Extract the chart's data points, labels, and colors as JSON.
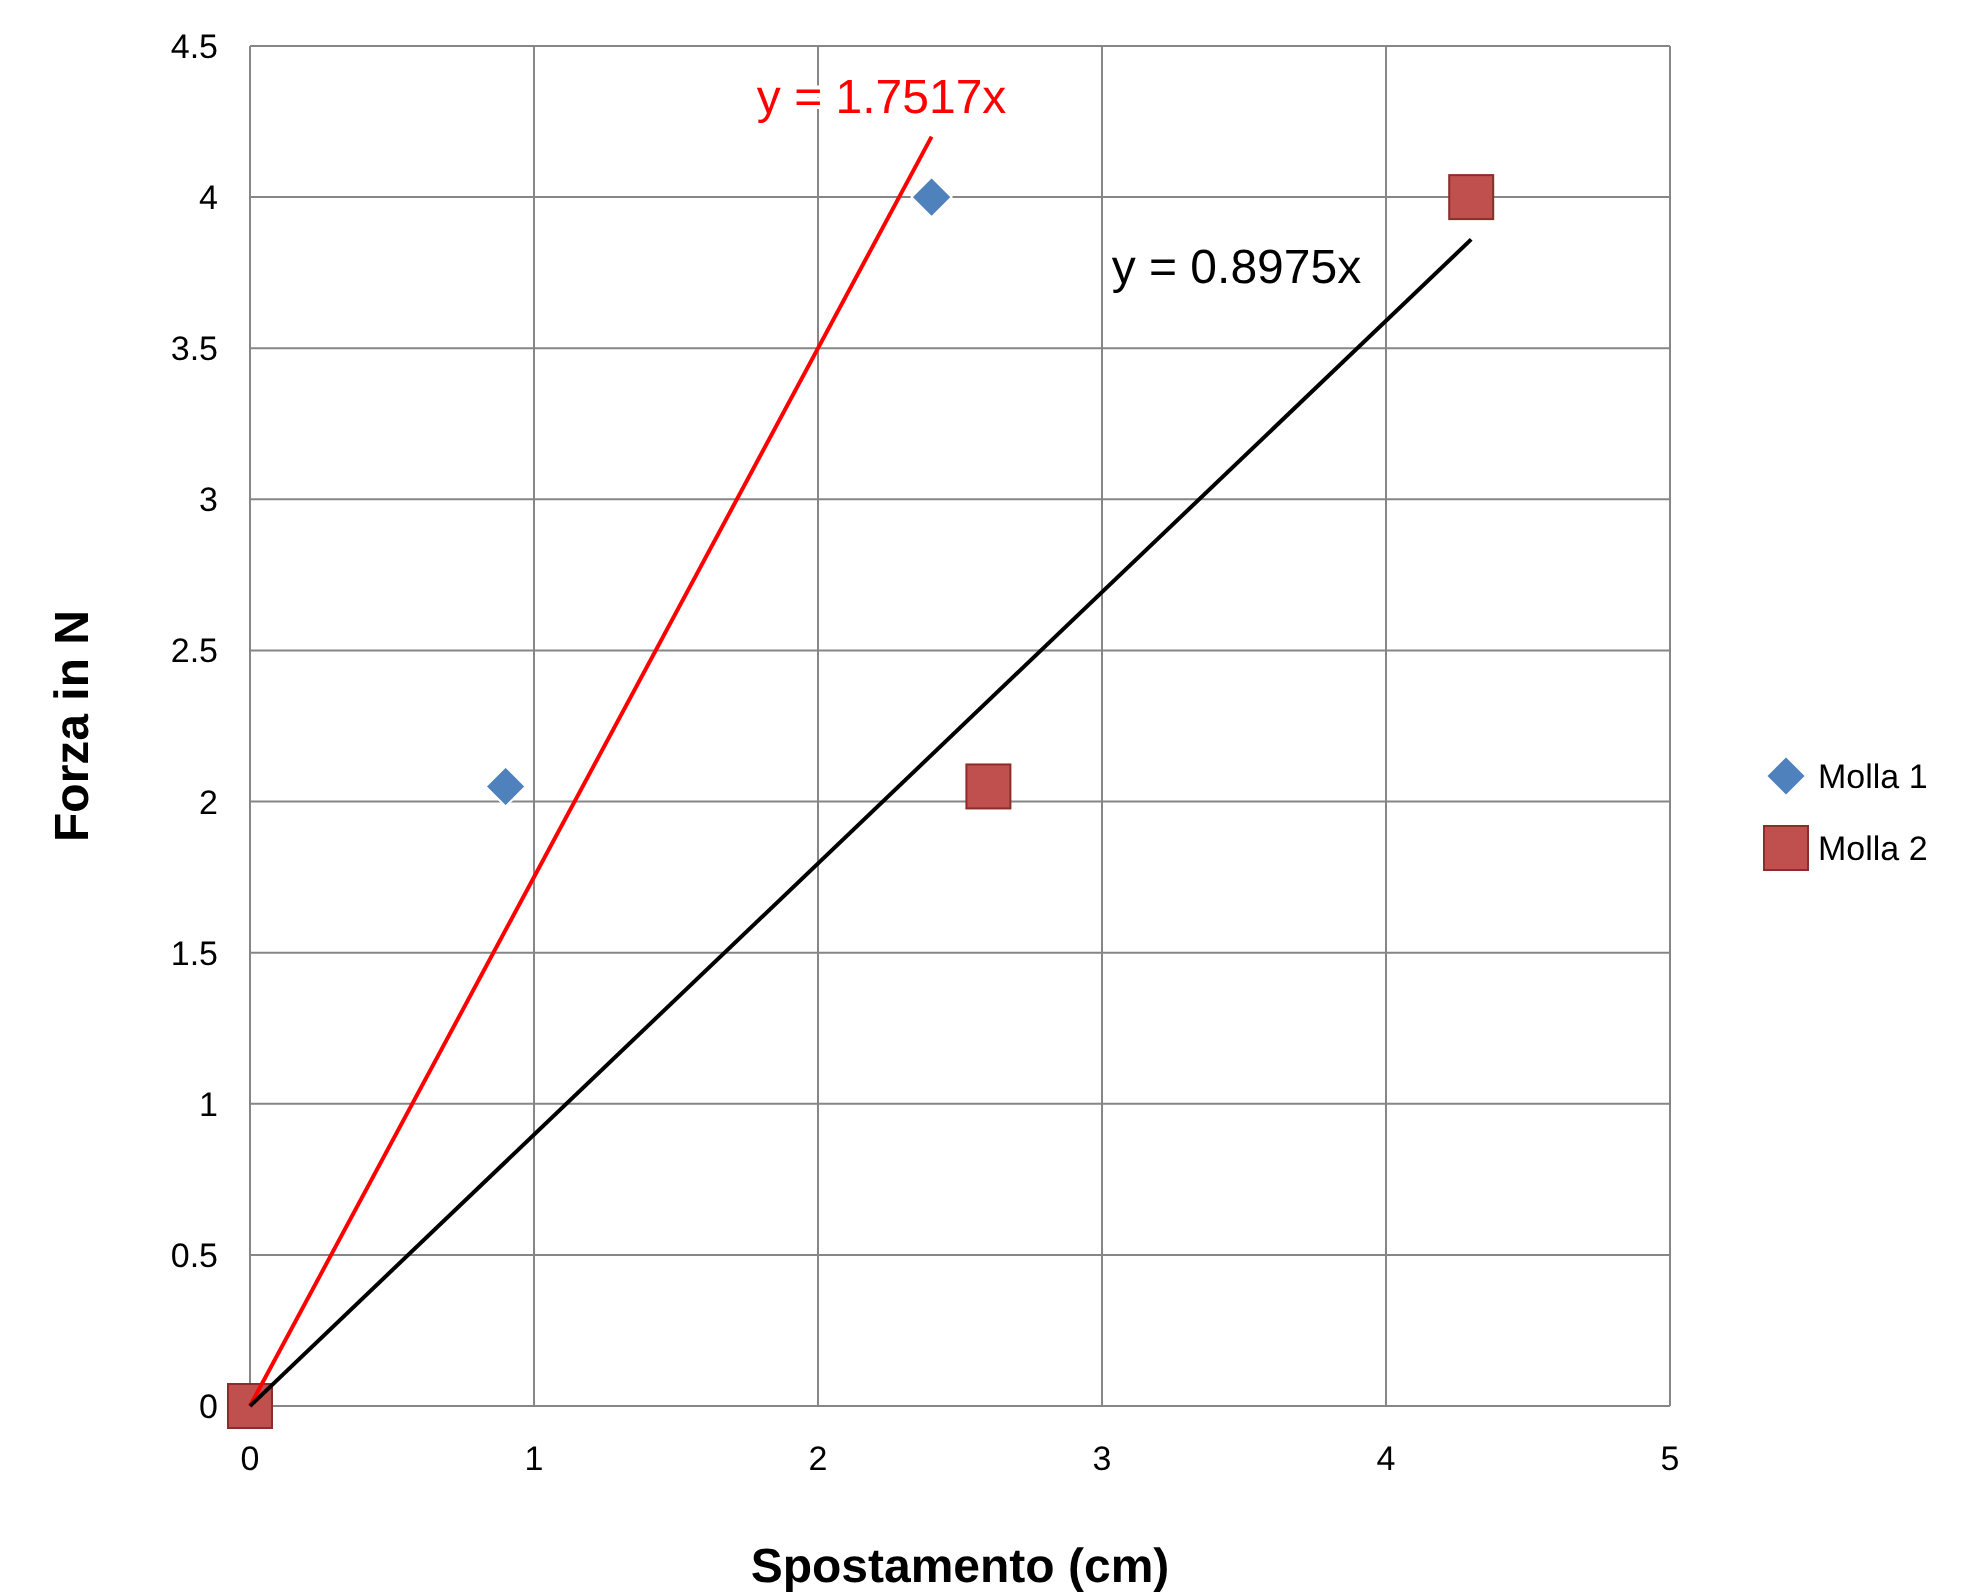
{
  "chart_data": {
    "type": "scatter",
    "xlabel": "Spostamento (cm)",
    "ylabel": "Forza in N",
    "xlim": [
      0,
      5
    ],
    "xticks": [
      0,
      1,
      2,
      3,
      4,
      5
    ],
    "ylim": [
      0,
      4.5
    ],
    "yticks": [
      0,
      0.5,
      1,
      1.5,
      2,
      2.5,
      3,
      3.5,
      4,
      4.5
    ],
    "grid": true,
    "legend": "right",
    "series": [
      {
        "name": "Molla 1",
        "color": "#4f81bd",
        "marker": "diamond",
        "x": [
          0.9,
          2.4
        ],
        "values": [
          2.05,
          4.0
        ]
      },
      {
        "name": "Molla 2",
        "color": "#c0504d",
        "marker": "square",
        "x": [
          0,
          2.6,
          4.3
        ],
        "values": [
          0,
          2.05,
          4.0
        ]
      },
      {
        "type": "line",
        "color": "#ff0000",
        "x": [
          0,
          2.4
        ],
        "values": [
          0,
          4.2
        ]
      },
      {
        "type": "line",
        "color": "#000000",
        "x": [
          0,
          4.3
        ],
        "values": [
          0,
          3.86
        ]
      }
    ],
    "annotations": [
      "y = 1.7517x",
      "y = 0.8975x"
    ]
  }
}
